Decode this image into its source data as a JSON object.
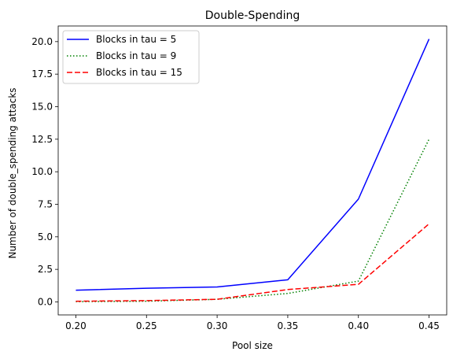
{
  "chart_data": {
    "type": "line",
    "title": "Double-Spending",
    "xlabel": "Pool size",
    "ylabel": "Number of double_spending attacks",
    "x": [
      0.2,
      0.25,
      0.3,
      0.35,
      0.4,
      0.45
    ],
    "xticks": [
      "0.20",
      "0.25",
      "0.30",
      "0.35",
      "0.40",
      "0.45"
    ],
    "yticks": [
      "0.0",
      "2.5",
      "5.0",
      "7.5",
      "10.0",
      "12.5",
      "15.0",
      "17.5",
      "20.0"
    ],
    "xlim": [
      0.1875,
      0.4625
    ],
    "ylim": [
      -1.0,
      21.2
    ],
    "grid": false,
    "legend_position": "top-left",
    "series": [
      {
        "name": "Blocks in tau = 5",
        "color": "#0000ff",
        "style": "solid",
        "values": [
          0.9,
          1.05,
          1.15,
          1.7,
          7.9,
          20.2
        ]
      },
      {
        "name": "Blocks in tau = 9",
        "color": "#008000",
        "style": "dotted",
        "values": [
          0.02,
          0.05,
          0.2,
          0.65,
          1.6,
          12.5
        ]
      },
      {
        "name": "Blocks in tau = 15",
        "color": "#ff0000",
        "style": "dashed",
        "values": [
          0.05,
          0.1,
          0.2,
          0.95,
          1.35,
          6.0
        ]
      }
    ]
  }
}
